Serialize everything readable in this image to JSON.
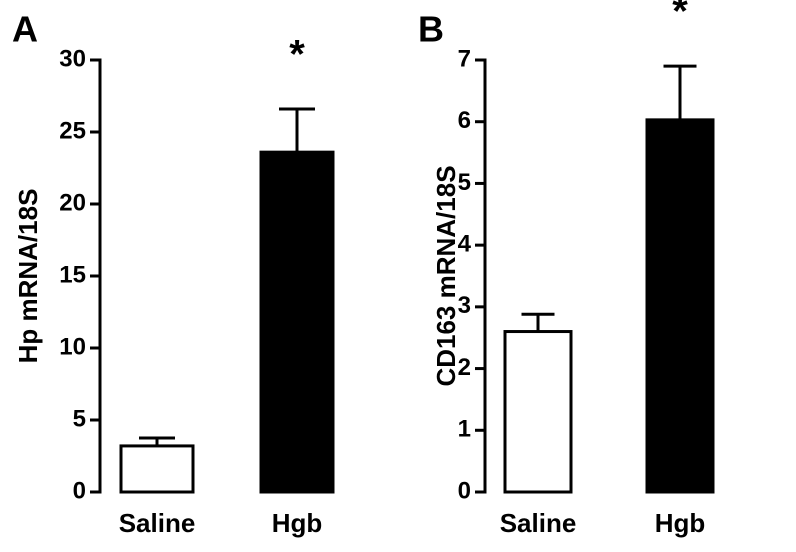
{
  "chart_data": [
    {
      "type": "bar",
      "panel": "A",
      "ylabel": "Hp mRNA/18S",
      "categories": [
        "Saline",
        "Hgb"
      ],
      "values": [
        3.2,
        23.6
      ],
      "errors": [
        0.55,
        3.0
      ],
      "colors": [
        "#ffffff",
        "#000000"
      ],
      "annotation": "*",
      "ylim": [
        0,
        30
      ],
      "yticks": [
        0,
        5,
        10,
        15,
        20,
        25,
        30
      ]
    },
    {
      "type": "bar",
      "panel": "B",
      "ylabel": "CD163 mRNA/18S",
      "categories": [
        "Saline",
        "Hgb"
      ],
      "values": [
        2.6,
        6.03
      ],
      "errors": [
        0.28,
        0.87
      ],
      "colors": [
        "#ffffff",
        "#000000"
      ],
      "annotation": "*",
      "ylim": [
        0,
        7
      ],
      "yticks": [
        0,
        1,
        2,
        3,
        4,
        5,
        6,
        7
      ]
    }
  ]
}
